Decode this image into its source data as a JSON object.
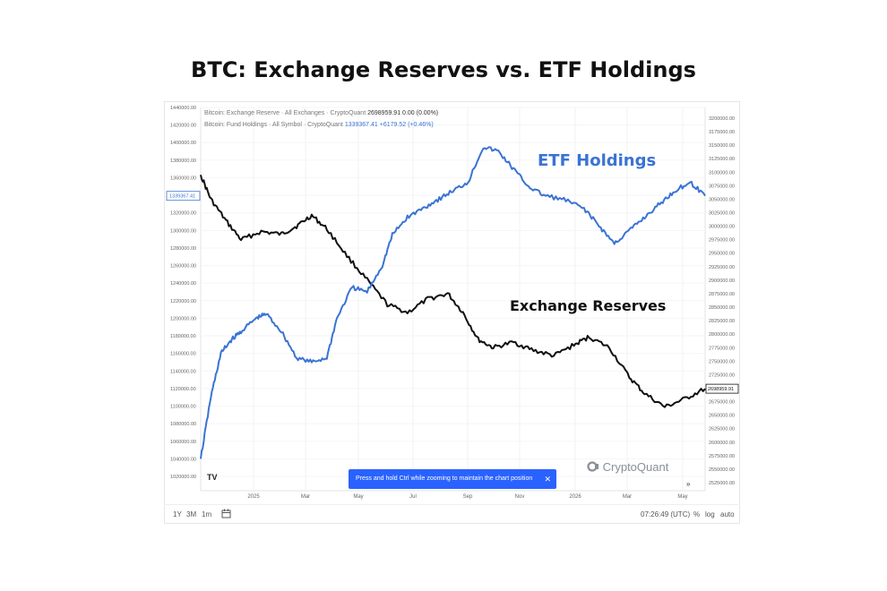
{
  "title": "BTC: Exchange Reserves vs. ETF Holdings",
  "legend": {
    "reserve_name": "Bitcoin: Exchange Reserve · All Exchanges · CryptoQuant",
    "reserve_value": "2698959.91",
    "reserve_change": "0.00 (0.00%)",
    "etf_name": "Bitcoin: Fund Holdings · All Symbol · CryptoQuant",
    "etf_value": "1339367.41",
    "etf_change": "+6179.52 (+0.46%)"
  },
  "annotations": {
    "etf": "ETF Holdings",
    "reserve": "Exchange Reserves"
  },
  "toast": "Press and hold Ctrl while zooming to maintain the chart position",
  "watermark": "CryptoQuant",
  "tv_logo": "TV",
  "bottom_bar": {
    "ranges": [
      "1Y",
      "3M",
      "1m"
    ],
    "time": "07:26:49 (UTC)",
    "pct": "%",
    "log": "log",
    "auto": "auto"
  },
  "colors": {
    "reserve": "#111111",
    "etf": "#3a73d4"
  },
  "chart_data": {
    "type": "line",
    "title": "BTC: Exchange Reserves vs. ETF Holdings",
    "x_ticks": [
      "2025",
      "Mar",
      "May",
      "Jul",
      "Sep",
      "Nov",
      "2026",
      "Mar",
      "May"
    ],
    "left_axis": {
      "series": "Bitcoin: Fund Holdings",
      "range": [
        1020000,
        1440000
      ],
      "ticks": [
        "1440000.00",
        "1420000.00",
        "1400000.00",
        "1380000.00",
        "1360000.00",
        "1340000.00",
        "1320000.00",
        "1300000.00",
        "1280000.00",
        "1260000.00",
        "1240000.00",
        "1220000.00",
        "1200000.00",
        "1180000.00",
        "1160000.00",
        "1140000.00",
        "1120000.00",
        "1100000.00",
        "1080000.00",
        "1060000.00",
        "1040000.00",
        "1020000.00"
      ],
      "last_label": "1339367.41"
    },
    "right_axis": {
      "series": "Bitcoin: Exchange Reserve",
      "range": [
        2525000,
        3200000
      ],
      "ticks": [
        "3200000.00",
        "3175000.00",
        "3150000.00",
        "3125000.00",
        "3100000.00",
        "3075000.00",
        "3050000.00",
        "3025000.00",
        "3000000.00",
        "2975000.00",
        "2950000.00",
        "2925000.00",
        "2900000.00",
        "2875000.00",
        "2850000.00",
        "2825000.00",
        "2800000.00",
        "2775000.00",
        "2750000.00",
        "2725000.00",
        "2700000.00",
        "2675000.00",
        "2650000.00",
        "2625000.00",
        "2600000.00",
        "2575000.00",
        "2550000.00",
        "2525000.00"
      ],
      "last_label": "2698959.91"
    },
    "series": [
      {
        "name": "Exchange Reserves",
        "axis": "right",
        "color": "#111111",
        "x": [
          0,
          2,
          5,
          8,
          12,
          16,
          19,
          22,
          25,
          29,
          33,
          37,
          41,
          45,
          49,
          52,
          55,
          58,
          62,
          66,
          70,
          74,
          77,
          81,
          85,
          88,
          92,
          96,
          100
        ],
        "values": [
          3095000,
          3050000,
          3010000,
          2975000,
          2990000,
          2985000,
          3000000,
          3020000,
          2995000,
          2945000,
          2900000,
          2855000,
          2840000,
          2865000,
          2875000,
          2840000,
          2790000,
          2775000,
          2785000,
          2770000,
          2760000,
          2780000,
          2795000,
          2775000,
          2720000,
          2690000,
          2665000,
          2680000,
          2698960
        ]
      },
      {
        "name": "ETF Holdings",
        "axis": "left",
        "color": "#3a73d4",
        "x": [
          0,
          2,
          4,
          6,
          8,
          11,
          13,
          16,
          19,
          22,
          25,
          27,
          30,
          33,
          36,
          38,
          41,
          44,
          47,
          50,
          53,
          56,
          59,
          62,
          65,
          68,
          72,
          76,
          79,
          82,
          85,
          88,
          91,
          94,
          97,
          100
        ],
        "values": [
          1040000,
          1110000,
          1160000,
          1175000,
          1185000,
          1200000,
          1205000,
          1185000,
          1155000,
          1150000,
          1155000,
          1200000,
          1235000,
          1230000,
          1260000,
          1295000,
          1315000,
          1325000,
          1335000,
          1345000,
          1355000,
          1395000,
          1390000,
          1370000,
          1350000,
          1340000,
          1335000,
          1325000,
          1305000,
          1285000,
          1300000,
          1315000,
          1330000,
          1345000,
          1355000,
          1339367
        ]
      }
    ],
    "grid": true,
    "legend": "top-left"
  }
}
